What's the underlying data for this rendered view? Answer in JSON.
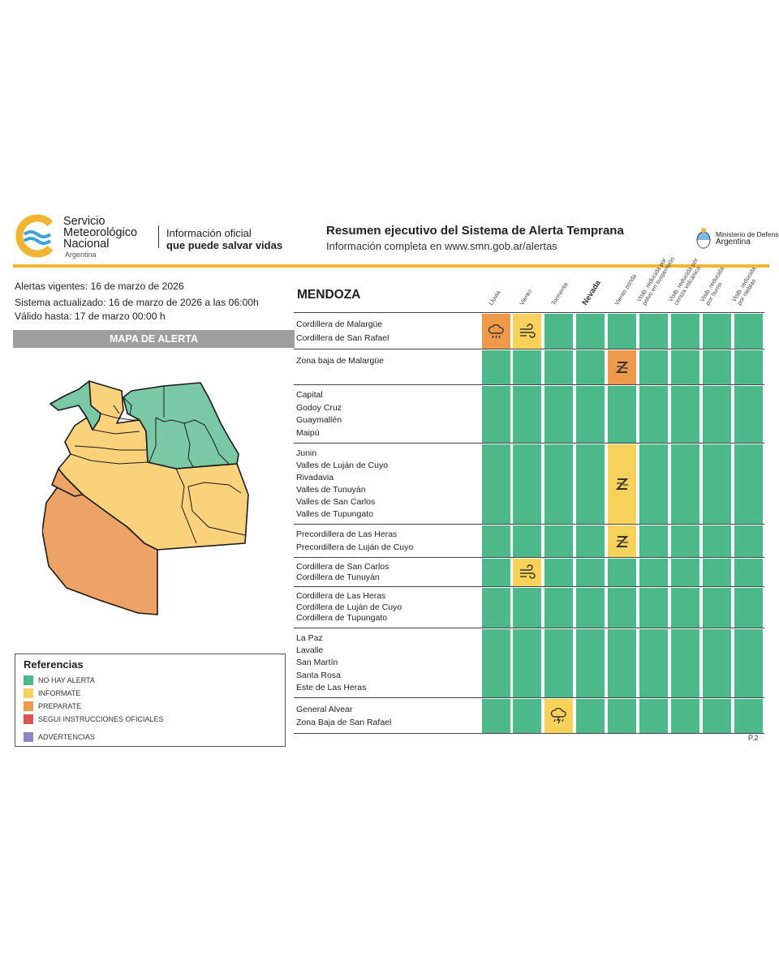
{
  "header": {
    "org_lines": [
      "Servicio",
      "Meteorológico",
      "Nacional"
    ],
    "org_country": "Argentina",
    "tagline_1": "Información oficial",
    "tagline_2": "que puede salvar vidas",
    "report_title": "Resumen ejecutivo del Sistema de Alerta Temprana",
    "report_subtitle": "Información completa en www.smn.gob.ar/alertas",
    "ministry_line": "Ministerio de Defensa",
    "ministry_country": "Argentina"
  },
  "meta": {
    "vigentes": "Alertas vigentes: 16 de marzo de 2026",
    "actualizado": "Sistema actualizado: 16 de marzo de 2026 a las 06:00h",
    "valido": "Válido hasta: 17 de marzo 00:00 h"
  },
  "map_title": "MAPA DE ALERTA",
  "references": {
    "title": "Referencias",
    "items": [
      {
        "label": "NO HAY ALERTA",
        "color": "#4db98a"
      },
      {
        "label": "INFORMATE",
        "color": "#f7d25a"
      },
      {
        "label": "PREPARATE",
        "color": "#ef9a4a"
      },
      {
        "label": "SEGUI INSTRUCCIONES OFICIALES",
        "color": "#e0524f"
      },
      {
        "label": "ADVERTENCIAS",
        "color": "#8f86c8"
      }
    ]
  },
  "table": {
    "province": "MENDOZA",
    "columns": [
      {
        "label": "Lluvia",
        "strong": false
      },
      {
        "label": "Viento",
        "strong": false
      },
      {
        "label": "Tormenta",
        "strong": false
      },
      {
        "label": "Nevada",
        "strong": true
      },
      {
        "label": "Viento zonda",
        "strong": false
      },
      {
        "label": "Visib. reducida por|polvo en suspensión",
        "strong": false
      },
      {
        "label": "Visib. reducida por|ceniza volcánica",
        "strong": false
      },
      {
        "label": "Visib. reducida|por humo",
        "strong": false
      },
      {
        "label": "Visib. reducida|por nieblas",
        "strong": false
      }
    ],
    "rows": [
      {
        "zones": [
          "Cordillera de Malargüe",
          "Cordillera de San Rafael"
        ],
        "levels": [
          "o",
          "y",
          "g",
          "g",
          "g",
          "g",
          "g",
          "g",
          "g"
        ],
        "icons": [
          "rain-icon",
          "wind-icon",
          "",
          "",
          "",
          "",
          "",
          "",
          ""
        ]
      },
      {
        "zones": [
          "Zona baja de Malargüe"
        ],
        "levels": [
          "g",
          "g",
          "g",
          "g",
          "o",
          "g",
          "g",
          "g",
          "g"
        ],
        "icons": [
          "",
          "",
          "",
          "",
          "zonda-icon",
          "",
          "",
          "",
          ""
        ]
      },
      {
        "zones": [
          "Capital",
          "Godoy Cruz",
          "Guaymallén",
          "Maipú"
        ],
        "levels": [
          "g",
          "g",
          "g",
          "g",
          "g",
          "g",
          "g",
          "g",
          "g"
        ],
        "icons": [
          "",
          "",
          "",
          "",
          "",
          "",
          "",
          "",
          ""
        ]
      },
      {
        "zones": [
          "Junin",
          "Valles de Luján de Cuyo",
          "Rivadavia",
          "Valles de Tunuyán",
          "Valles de San Carlos",
          "Valles de Tupungato"
        ],
        "levels": [
          "g",
          "g",
          "g",
          "g",
          "y",
          "g",
          "g",
          "g",
          "g"
        ],
        "icons": [
          "",
          "",
          "",
          "",
          "zonda-icon",
          "",
          "",
          "",
          ""
        ]
      },
      {
        "zones": [
          "Precordillera de Las Heras",
          "Precordillera de Luján de Cuyo"
        ],
        "levels": [
          "g",
          "g",
          "g",
          "g",
          "y",
          "g",
          "g",
          "g",
          "g"
        ],
        "icons": [
          "",
          "",
          "",
          "",
          "zonda-icon",
          "",
          "",
          "",
          ""
        ]
      },
      {
        "zones": [
          "Cordillera de San Carlos",
          "Cordillera de Tunuyán"
        ],
        "levels": [
          "g",
          "y",
          "g",
          "g",
          "g",
          "g",
          "g",
          "g",
          "g"
        ],
        "icons": [
          "",
          "wind-icon",
          "",
          "",
          "",
          "",
          "",
          "",
          ""
        ]
      },
      {
        "zones": [
          "Cordillera de Las Heras",
          "Cordillera de Luján de Cuyo",
          "Cordillera de Tupungato"
        ],
        "levels": [
          "g",
          "g",
          "g",
          "g",
          "g",
          "g",
          "g",
          "g",
          "g"
        ],
        "icons": [
          "",
          "",
          "",
          "",
          "",
          "",
          "",
          "",
          ""
        ]
      },
      {
        "zones": [
          "La Paz",
          "Lavalle",
          "San Martín",
          "Santa Rosa",
          "Este de Las Heras"
        ],
        "levels": [
          "g",
          "g",
          "g",
          "g",
          "g",
          "g",
          "g",
          "g",
          "g"
        ],
        "icons": [
          "",
          "",
          "",
          "",
          "",
          "",
          "",
          "",
          ""
        ]
      },
      {
        "zones": [
          "General Alvear",
          "Zona Baja de San Rafael"
        ],
        "levels": [
          "g",
          "g",
          "y",
          "g",
          "g",
          "g",
          "g",
          "g",
          "g"
        ],
        "icons": [
          "",
          "",
          "storm-icon",
          "",
          "",
          "",
          "",
          "",
          ""
        ]
      }
    ]
  },
  "page_label": "P.2"
}
